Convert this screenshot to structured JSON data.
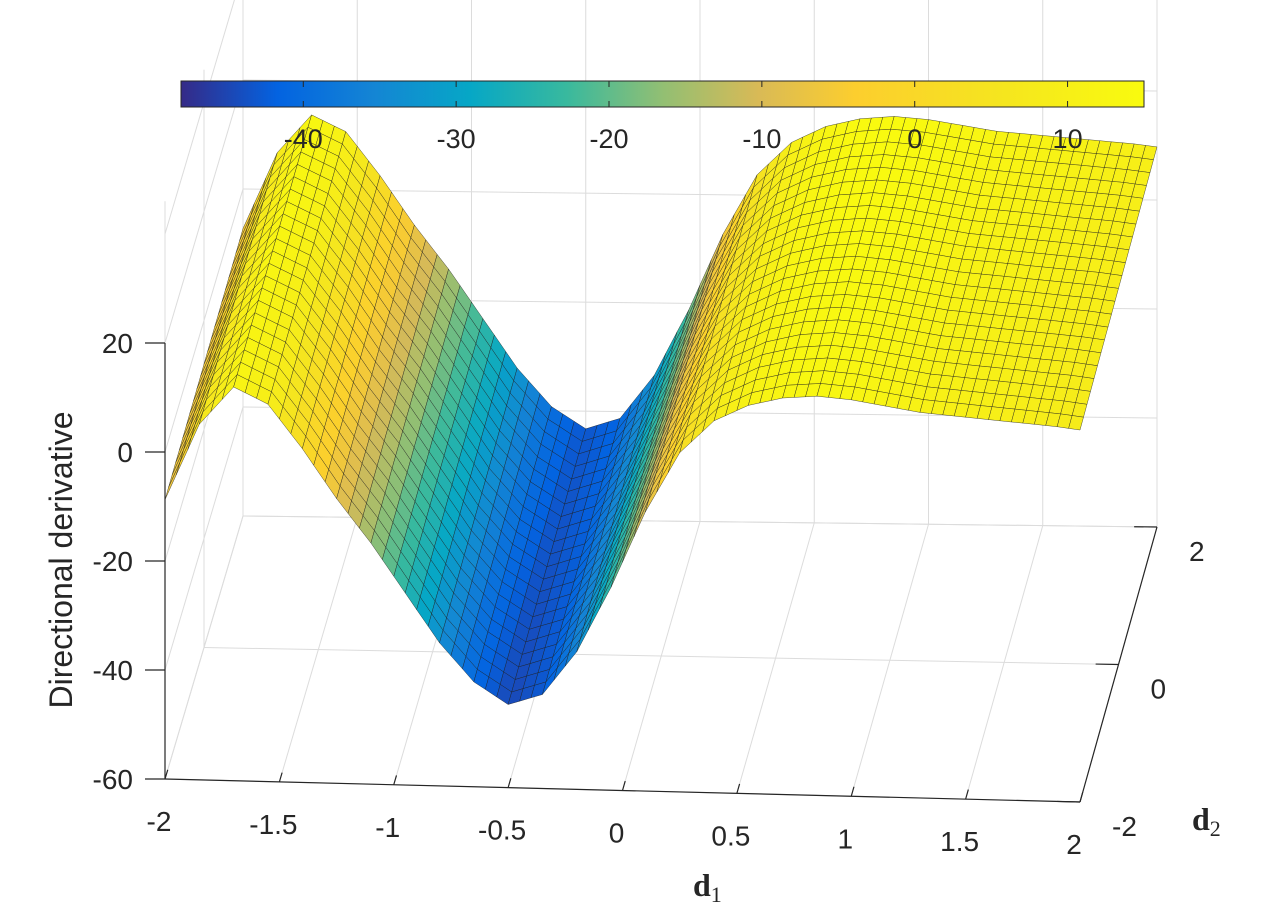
{
  "chart_data": {
    "type": "surface",
    "colormap": "parula",
    "grid": true,
    "x_axis": {
      "label": "d",
      "label_subscript": "1",
      "range": [
        -2,
        2
      ],
      "ticks": [
        -2,
        -1.5,
        -1,
        -0.5,
        0,
        0.5,
        1,
        1.5,
        2
      ],
      "tick_labels": [
        "-2",
        "-1.5",
        "-1",
        "-0.5",
        "0",
        "0.5",
        "1",
        "1.5",
        "2"
      ]
    },
    "y_axis": {
      "label": "d",
      "label_subscript": "2",
      "range": [
        -2,
        2
      ],
      "ticks": [
        -2,
        0,
        2
      ],
      "tick_labels": [
        "-2",
        "0",
        "2"
      ]
    },
    "z_axis": {
      "label": "Directional derivative",
      "range": [
        -60,
        20
      ],
      "ticks": [
        -60,
        -40,
        -20,
        0,
        20
      ],
      "tick_labels": [
        "-60",
        "-40",
        "-20",
        "0",
        "20"
      ]
    },
    "colorbar": {
      "location": "top",
      "range": [
        -48,
        15
      ],
      "ticks": [
        -40,
        -30,
        -20,
        -10,
        0,
        10
      ],
      "tick_labels": [
        "-40",
        "-30",
        "-20",
        "-10",
        "0",
        "10"
      ]
    },
    "surface_profile": {
      "description_of_values": "Surface value along d1 (constant in d2), estimated from the figure",
      "d1": [
        -2,
        -1.5,
        -1,
        -0.5,
        0,
        0.5,
        1,
        1.5,
        2
      ],
      "value": [
        -8,
        13,
        -18,
        -44,
        -22,
        9,
        14,
        11,
        9
      ]
    },
    "profile_mapping": {
      "d1": [
        -2.0,
        -1.85,
        -1.7,
        -1.55,
        -1.4,
        -1.25,
        -1.1,
        -0.95,
        -0.8,
        -0.65,
        -0.5,
        -0.35,
        -0.2,
        -0.05,
        0.1,
        0.25,
        0.4,
        0.55,
        0.7,
        0.85,
        1.0,
        1.15,
        1.3,
        1.45,
        1.6,
        1.75,
        1.9,
        2.0
      ],
      "value": [
        -8,
        6,
        13,
        10,
        2,
        -7,
        -15,
        -24,
        -33,
        -40,
        -44,
        -42,
        -34,
        -22,
        -8,
        3,
        9,
        12,
        13.5,
        14,
        13.5,
        12.5,
        11.5,
        11,
        10.5,
        10,
        9.5,
        9
      ]
    }
  }
}
